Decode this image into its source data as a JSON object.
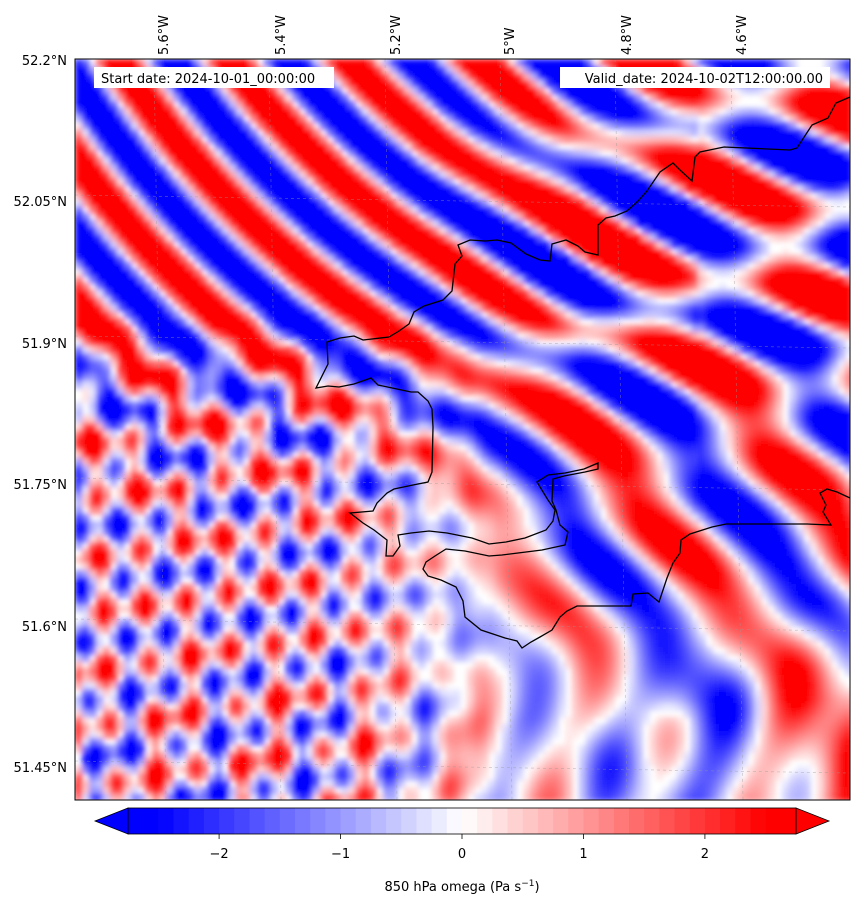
{
  "header": {
    "start_date": "Start date: 2024-10-01_00:00:00",
    "valid_date": "Valid_date: 2024-10-02T12:00:00.00"
  },
  "longitude_labels": [
    "5.6°W",
    "5.4°W",
    "5.2°W",
    "5°W",
    "4.8°W",
    "4.6°W"
  ],
  "latitude_labels": [
    "52.2°N",
    "52.05°N",
    "51.9°N",
    "51.75°N",
    "51.6°N",
    "51.45°N"
  ],
  "colorbar": {
    "variable": "850 hPa omega",
    "units_prefix": "Pa s",
    "units_exponent": "−1",
    "tick_labels": [
      "−2",
      "−1",
      "0",
      "1",
      "2"
    ],
    "ticks": [
      -2,
      -1,
      0,
      1,
      2
    ],
    "range": [
      -2.75,
      2.75
    ],
    "colormap": "bwr",
    "extend": "both",
    "colors": {
      "negative": "#0000ff",
      "zero": "#ffffff",
      "positive": "#ff0000"
    }
  },
  "map": {
    "projection": "lambert",
    "extent_lon": [
      -5.72,
      -4.5
    ],
    "extent_lat": [
      51.42,
      52.2
    ],
    "coastline_color": "#000000",
    "gridlines": true
  }
}
